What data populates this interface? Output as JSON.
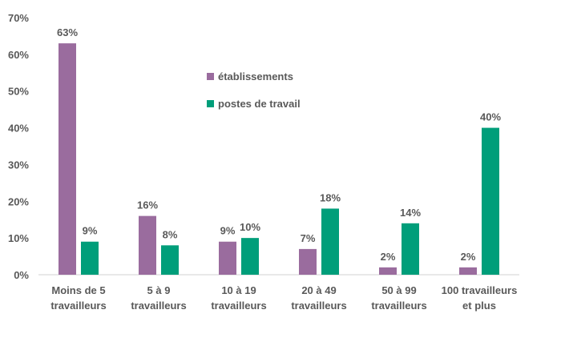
{
  "chart_data": {
    "type": "bar",
    "categories": [
      [
        "Moins de 5",
        "travailleurs"
      ],
      [
        "5 à 9",
        "travailleurs"
      ],
      [
        "10 à 19",
        "travailleurs"
      ],
      [
        "20 à 49",
        "travailleurs"
      ],
      [
        "50 à 99",
        "travailleurs"
      ],
      [
        "100 travailleurs",
        "et plus"
      ]
    ],
    "series": [
      {
        "name": "établissements",
        "color": "#9a6c9e",
        "values": [
          63,
          16,
          9,
          7,
          2,
          2
        ],
        "labels": [
          "63%",
          "16%",
          "9%",
          "7%",
          "2%",
          "2%"
        ]
      },
      {
        "name": "postes de travail",
        "color": "#009e7a",
        "values": [
          9,
          8,
          10,
          18,
          14,
          40
        ],
        "labels": [
          "9%",
          "8%",
          "10%",
          "18%",
          "14%",
          "40%"
        ]
      }
    ],
    "ylim": [
      0,
      70
    ],
    "yticks": [
      0,
      10,
      20,
      30,
      40,
      50,
      60,
      70
    ],
    "ytick_labels": [
      "0%",
      "10%",
      "20%",
      "30%",
      "40%",
      "50%",
      "60%",
      "70%"
    ],
    "legend": "upper-center",
    "grid": false,
    "axis_color": "#d0d0d0"
  }
}
